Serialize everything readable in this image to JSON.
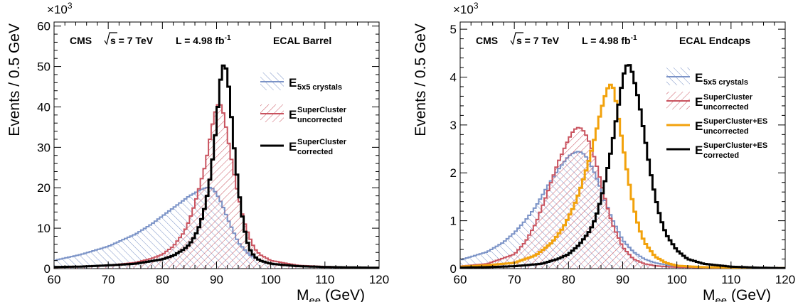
{
  "chart_data": [
    {
      "type": "line",
      "panel": "left",
      "info": {
        "experiment": "CMS",
        "energy_sqrt": "s",
        "energy_value": "= 7 TeV",
        "lumi_prefix": "L = 4.98 fb",
        "lumi_exp": "-1",
        "region": "ECAL Barrel"
      },
      "xlabel": {
        "main": "M",
        "sub": "ee",
        "unit": " (GeV)"
      },
      "ylabel": "Events / 0.5 GeV",
      "y_multiplier": {
        "base": "×10",
        "exp": "3"
      },
      "xlim": [
        60,
        120
      ],
      "ylim": [
        0,
        61
      ],
      "xticks": [
        "60",
        "70",
        "80",
        "90",
        "100",
        "110",
        "120"
      ],
      "yticks": [
        "0",
        "10",
        "20",
        "30",
        "40",
        "50",
        "60"
      ],
      "series": [
        {
          "legend_main": "E",
          "legend_sub": "5x5 crystals",
          "legend_sup": "",
          "color": "#7b93c7",
          "style": "hatch-forward",
          "x": [
            60,
            65,
            70,
            75,
            78,
            80,
            82,
            84,
            85,
            86,
            87,
            88,
            88.5,
            89,
            89.5,
            90,
            91,
            92,
            93,
            94,
            96,
            98,
            100,
            105,
            110,
            115,
            120
          ],
          "y": [
            2,
            3.5,
            5.5,
            8.5,
            11,
            13,
            15,
            17,
            18,
            18.7,
            19.5,
            20,
            20.1,
            20,
            19.6,
            18.5,
            16,
            12.5,
            9.5,
            6.5,
            3.5,
            2,
            1.2,
            0.6,
            0.4,
            0.3,
            0.2
          ]
        },
        {
          "legend_main": "E",
          "legend_sub": "uncorrected",
          "legend_sup": "SuperCluster",
          "color": "#c9535f",
          "style": "hatch-back",
          "x": [
            60,
            65,
            70,
            75,
            78,
            80,
            82,
            84,
            85,
            86,
            87,
            88,
            88.5,
            89,
            89.5,
            90,
            90.5,
            91,
            91.5,
            92,
            93,
            94,
            95,
            96,
            97,
            98,
            100,
            105,
            110,
            115,
            120
          ],
          "y": [
            0.3,
            0.5,
            0.8,
            1.5,
            2.5,
            3.5,
            5.5,
            9,
            12,
            16,
            21,
            26,
            30,
            34,
            37.5,
            40,
            41,
            40,
            37,
            33,
            25,
            18,
            12,
            8,
            5,
            3.5,
            2,
            0.8,
            0.5,
            0.3,
            0.2
          ]
        },
        {
          "legend_main": "E",
          "legend_sub": "corrected",
          "legend_sup": "SuperCluster",
          "color": "#000000",
          "style": "line",
          "x": [
            60,
            65,
            70,
            75,
            80,
            82,
            84,
            85,
            86,
            87,
            88,
            89,
            90,
            90.5,
            91,
            91.5,
            92,
            92.5,
            93,
            94,
            95,
            96,
            97,
            98,
            100,
            105,
            110,
            115,
            120
          ],
          "y": [
            0.4,
            0.5,
            0.8,
            1.2,
            2.3,
            3.2,
            4.8,
            6,
            8,
            11,
            16,
            24,
            36,
            44,
            49.5,
            51,
            48,
            42,
            33,
            20,
            10.5,
            5,
            3,
            2,
            1.2,
            0.6,
            0.4,
            0.3,
            0.2
          ]
        }
      ]
    },
    {
      "type": "line",
      "panel": "right",
      "info": {
        "experiment": "CMS",
        "energy_sqrt": "s",
        "energy_value": "= 7 TeV",
        "lumi_prefix": "L = 4.98 fb",
        "lumi_exp": "-1",
        "region": "ECAL Endcaps"
      },
      "xlabel": {
        "main": "M",
        "sub": "ee",
        "unit": " (GeV)"
      },
      "ylabel": "Events / 0.5 GeV",
      "y_multiplier": {
        "base": "×10",
        "exp": "3"
      },
      "xlim": [
        60,
        120
      ],
      "ylim": [
        0,
        5.15
      ],
      "xticks": [
        "60",
        "70",
        "80",
        "90",
        "100",
        "110",
        "120"
      ],
      "yticks": [
        "0",
        "1",
        "2",
        "3",
        "4",
        "5"
      ],
      "series": [
        {
          "legend_main": "E",
          "legend_sub": "5x5 crystals",
          "legend_sup": "",
          "color": "#7b93c7",
          "style": "hatch-forward",
          "x": [
            60,
            65,
            68,
            70,
            72,
            74,
            76,
            78,
            80,
            81,
            82,
            83,
            84,
            85,
            86,
            87,
            88,
            90,
            92,
            94,
            96,
            98,
            100,
            105,
            110,
            115,
            120
          ],
          "y": [
            0.18,
            0.35,
            0.55,
            0.75,
            1.0,
            1.3,
            1.7,
            2.05,
            2.35,
            2.42,
            2.45,
            2.38,
            2.2,
            1.95,
            1.65,
            1.35,
            1.05,
            0.6,
            0.35,
            0.2,
            0.12,
            0.08,
            0.05,
            0.03,
            0.02,
            0.015,
            0.01
          ]
        },
        {
          "legend_main": "E",
          "legend_sub": "uncorrected",
          "legend_sup": "SuperCluster",
          "color": "#c9535f",
          "style": "hatch-back",
          "x": [
            60,
            65,
            70,
            72,
            74,
            76,
            78,
            80,
            81,
            82,
            83,
            84,
            85,
            86,
            87,
            88,
            90,
            92,
            94,
            96,
            98,
            100,
            105,
            110,
            115,
            120
          ],
          "y": [
            0.05,
            0.1,
            0.3,
            0.55,
            0.95,
            1.55,
            2.2,
            2.7,
            2.9,
            2.96,
            2.85,
            2.6,
            2.25,
            1.8,
            1.35,
            0.95,
            0.45,
            0.2,
            0.1,
            0.06,
            0.04,
            0.03,
            0.02,
            0.01,
            0.01,
            0.01
          ]
        },
        {
          "legend_main": "E",
          "legend_sub": "uncorrected",
          "legend_sup": "SuperCluster+ES",
          "color": "#f2a20c",
          "style": "line",
          "x": [
            60,
            65,
            70,
            74,
            77,
            79,
            81,
            82,
            83,
            84,
            85,
            86,
            87,
            87.5,
            88,
            88.5,
            89,
            90,
            91,
            92,
            93,
            94,
            96,
            98,
            100,
            105,
            110,
            115,
            120
          ],
          "y": [
            0.04,
            0.07,
            0.12,
            0.28,
            0.55,
            0.85,
            1.3,
            1.6,
            1.95,
            2.35,
            2.8,
            3.3,
            3.7,
            3.83,
            3.85,
            3.7,
            3.3,
            2.6,
            1.9,
            1.3,
            0.85,
            0.55,
            0.25,
            0.12,
            0.06,
            0.03,
            0.02,
            0.01,
            0.01
          ]
        },
        {
          "legend_main": "E",
          "legend_sub": "corrected",
          "legend_sup": "SuperCluster+ES",
          "color": "#000000",
          "style": "line",
          "x": [
            60,
            65,
            70,
            75,
            78,
            80,
            82,
            84,
            85,
            86,
            87,
            88,
            89,
            90,
            90.5,
            91,
            91.5,
            92,
            93,
            94,
            95,
            96,
            97,
            98,
            100,
            102,
            105,
            110,
            115,
            120
          ],
          "y": [
            0.02,
            0.03,
            0.05,
            0.1,
            0.2,
            0.3,
            0.5,
            0.8,
            1.05,
            1.45,
            1.95,
            2.55,
            3.25,
            3.95,
            4.2,
            4.28,
            4.22,
            4.0,
            3.5,
            2.8,
            2.1,
            1.5,
            1.05,
            0.72,
            0.38,
            0.2,
            0.1,
            0.04,
            0.02,
            0.01
          ]
        }
      ]
    }
  ]
}
